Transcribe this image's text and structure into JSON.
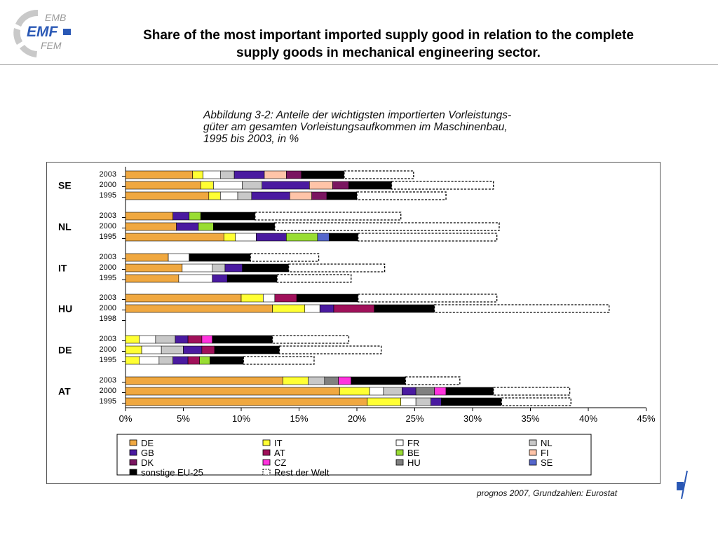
{
  "header": {
    "logo_text_top": "EMB",
    "logo_text_main": "EMF",
    "logo_text_bottom": "FEM",
    "title_line1": "Share of the most important imported supply good in relation to the complete",
    "title_line2": "supply goods in mechanical engineering sector."
  },
  "figure": {
    "subtitle": "Abbildung 3-2: Anteile der wichtigsten importierten Vorleistungs-\ngüter am gesamten Vorleistungsaufkommen im Maschinenbau,\n1995 bis 2003, in %",
    "source": "prognos 2007, Grundzahlen: Eurostat"
  },
  "colors": {
    "DE": "#f0a840",
    "IT": "#ffff33",
    "FR": "#ffffff",
    "NL": "#c8c8c8",
    "GB": "#4a1aa0",
    "AT": "#a0105a",
    "BE": "#99dd33",
    "FI": "#ffc4a8",
    "DK": "#7a1560",
    "CZ": "#ff33dd",
    "HU": "#808080",
    "SE": "#5566cc",
    "sonstige EU-25": "#000000",
    "Rest der Welt": "#ffffff"
  },
  "chart_data": {
    "type": "bar",
    "orientation": "horizontal",
    "stacked": true,
    "xlim": [
      0,
      45
    ],
    "x_ticks": [
      "0%",
      "5%",
      "10%",
      "15%",
      "20%",
      "25%",
      "30%",
      "35%",
      "40%",
      "45%"
    ],
    "legend": [
      {
        "key": "DE",
        "label": "DE"
      },
      {
        "key": "IT",
        "label": "IT"
      },
      {
        "key": "FR",
        "label": "FR"
      },
      {
        "key": "NL",
        "label": "NL"
      },
      {
        "key": "GB",
        "label": "GB"
      },
      {
        "key": "AT",
        "label": "AT"
      },
      {
        "key": "BE",
        "label": "BE"
      },
      {
        "key": "FI",
        "label": "FI"
      },
      {
        "key": "DK",
        "label": "DK"
      },
      {
        "key": "CZ",
        "label": "CZ"
      },
      {
        "key": "HU",
        "label": "HU"
      },
      {
        "key": "SE",
        "label": "SE"
      },
      {
        "key": "sonstige EU-25",
        "label": "sonstige EU-25"
      },
      {
        "key": "Rest der Welt",
        "label": "Rest der Welt",
        "dashed": true
      }
    ],
    "groups": [
      {
        "country": "SE",
        "rows": [
          {
            "year": "2003",
            "segments": [
              [
                "DE",
                5.8
              ],
              [
                "IT",
                0.9
              ],
              [
                "FR",
                1.5
              ],
              [
                "NL",
                1.2
              ],
              [
                "GB",
                2.6
              ],
              [
                "FI",
                1.9
              ],
              [
                "DK",
                1.3
              ],
              [
                "sonstige EU-25",
                3.7
              ],
              [
                "Rest der Welt",
                6.0
              ]
            ]
          },
          {
            "year": "2000",
            "segments": [
              [
                "DE",
                6.5
              ],
              [
                "IT",
                1.1
              ],
              [
                "FR",
                2.5
              ],
              [
                "NL",
                1.7
              ],
              [
                "GB",
                4.1
              ],
              [
                "FI",
                2.0
              ],
              [
                "DK",
                1.4
              ],
              [
                "sonstige EU-25",
                3.7
              ],
              [
                "Rest der Welt",
                8.8
              ]
            ]
          },
          {
            "year": "1995",
            "segments": [
              [
                "DE",
                7.2
              ],
              [
                "IT",
                1.0
              ],
              [
                "FR",
                1.5
              ],
              [
                "NL",
                1.2
              ],
              [
                "GB",
                3.3
              ],
              [
                "FI",
                1.9
              ],
              [
                "DK",
                1.3
              ],
              [
                "sonstige EU-25",
                2.6
              ],
              [
                "Rest der Welt",
                7.7
              ]
            ]
          }
        ]
      },
      {
        "country": "NL",
        "rows": [
          {
            "year": "2003",
            "segments": [
              [
                "DE",
                4.1
              ],
              [
                "GB",
                1.4
              ],
              [
                "BE",
                1.0
              ],
              [
                "sonstige EU-25",
                4.7
              ],
              [
                "Rest der Welt",
                12.6
              ]
            ]
          },
          {
            "year": "2000",
            "segments": [
              [
                "DE",
                4.4
              ],
              [
                "GB",
                1.9
              ],
              [
                "BE",
                1.3
              ],
              [
                "sonstige EU-25",
                5.3
              ],
              [
                "Rest der Welt",
                19.4
              ]
            ]
          },
          {
            "year": "1995",
            "segments": [
              [
                "DE",
                8.5
              ],
              [
                "IT",
                1.0
              ],
              [
                "FR",
                1.8
              ],
              [
                "GB",
                2.6
              ],
              [
                "BE",
                2.7
              ],
              [
                "SE",
                1.0
              ],
              [
                "sonstige EU-25",
                2.5
              ],
              [
                "Rest der Welt",
                12.0
              ]
            ]
          }
        ]
      },
      {
        "country": "IT",
        "rows": [
          {
            "year": "2003",
            "segments": [
              [
                "DE",
                3.7
              ],
              [
                "FR",
                1.8
              ],
              [
                "sonstige EU-25",
                5.3
              ],
              [
                "Rest der Welt",
                5.9
              ]
            ]
          },
          {
            "year": "2000",
            "segments": [
              [
                "DE",
                4.9
              ],
              [
                "FR",
                2.6
              ],
              [
                "NL",
                1.1
              ],
              [
                "GB",
                1.5
              ],
              [
                "sonstige EU-25",
                4.0
              ],
              [
                "Rest der Welt",
                8.3
              ]
            ]
          },
          {
            "year": "1995",
            "segments": [
              [
                "DE",
                4.6
              ],
              [
                "FR",
                2.9
              ],
              [
                "GB",
                1.3
              ],
              [
                "sonstige EU-25",
                4.3
              ],
              [
                "Rest der Welt",
                6.4
              ]
            ]
          }
        ]
      },
      {
        "country": "HU",
        "rows": [
          {
            "year": "2003",
            "segments": [
              [
                "DE",
                10.0
              ],
              [
                "IT",
                1.9
              ],
              [
                "FR",
                1.0
              ],
              [
                "AT",
                1.9
              ],
              [
                "sonstige EU-25",
                5.3
              ],
              [
                "Rest der Welt",
                12.0
              ]
            ]
          },
          {
            "year": "2000",
            "segments": [
              [
                "DE",
                12.7
              ],
              [
                "IT",
                2.8
              ],
              [
                "FR",
                1.3
              ],
              [
                "GB",
                1.2
              ],
              [
                "AT",
                3.5
              ],
              [
                "sonstige EU-25",
                5.2
              ],
              [
                "Rest der Welt",
                15.1
              ]
            ]
          },
          {
            "year": "1998",
            "segments": []
          }
        ]
      },
      {
        "country": "DE",
        "rows": [
          {
            "year": "2003",
            "segments": [
              [
                "IT",
                1.2
              ],
              [
                "FR",
                1.4
              ],
              [
                "NL",
                1.7
              ],
              [
                "GB",
                1.1
              ],
              [
                "AT",
                1.2
              ],
              [
                "CZ",
                0.9
              ],
              [
                "sonstige EU-25",
                5.2
              ],
              [
                "Rest der Welt",
                6.6
              ]
            ]
          },
          {
            "year": "2000",
            "segments": [
              [
                "IT",
                1.4
              ],
              [
                "FR",
                1.7
              ],
              [
                "NL",
                1.9
              ],
              [
                "GB",
                1.6
              ],
              [
                "AT",
                1.1
              ],
              [
                "sonstige EU-25",
                5.6
              ],
              [
                "Rest der Welt",
                8.8
              ]
            ]
          },
          {
            "year": "1995",
            "segments": [
              [
                "IT",
                1.2
              ],
              [
                "FR",
                1.7
              ],
              [
                "NL",
                1.2
              ],
              [
                "GB",
                1.3
              ],
              [
                "AT",
                1.0
              ],
              [
                "BE",
                0.9
              ],
              [
                "sonstige EU-25",
                2.9
              ],
              [
                "Rest der Welt",
                6.1
              ]
            ]
          }
        ]
      },
      {
        "country": "AT",
        "rows": [
          {
            "year": "2003",
            "segments": [
              [
                "DE",
                13.6
              ],
              [
                "IT",
                2.2
              ],
              [
                "NL",
                1.4
              ],
              [
                "HU",
                1.2
              ],
              [
                "CZ",
                1.1
              ],
              [
                "sonstige EU-25",
                4.7
              ],
              [
                "Rest der Welt",
                4.7
              ]
            ]
          },
          {
            "year": "2000",
            "segments": [
              [
                "DE",
                18.5
              ],
              [
                "IT",
                2.6
              ],
              [
                "FR",
                1.2
              ],
              [
                "NL",
                1.6
              ],
              [
                "GB",
                1.2
              ],
              [
                "HU",
                1.6
              ],
              [
                "CZ",
                1.0
              ],
              [
                "sonstige EU-25",
                4.1
              ],
              [
                "Rest der Welt",
                6.6
              ]
            ]
          },
          {
            "year": "1995",
            "segments": [
              [
                "DE",
                20.9
              ],
              [
                "IT",
                2.9
              ],
              [
                "FR",
                1.3
              ],
              [
                "NL",
                1.3
              ],
              [
                "GB",
                0.9
              ],
              [
                "sonstige EU-25",
                5.2
              ],
              [
                "Rest der Welt",
                6.0
              ]
            ]
          }
        ]
      }
    ]
  }
}
